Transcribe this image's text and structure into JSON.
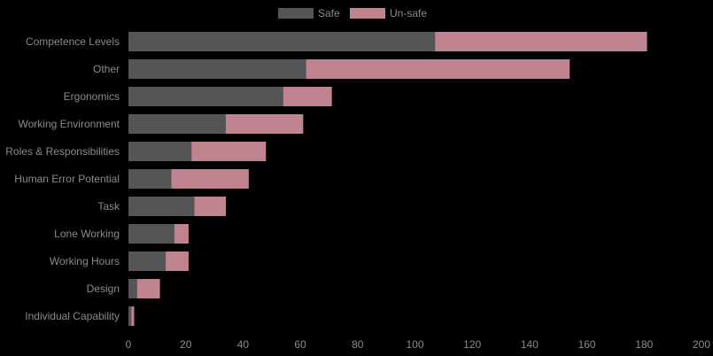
{
  "chart_data": {
    "type": "bar",
    "orientation": "horizontal",
    "stacked": true,
    "categories": [
      "Competence Levels",
      "Other",
      "Ergonomics",
      "Working Environment",
      "Roles & Responsibilities",
      "Human Error Potential",
      "Task",
      "Lone Working",
      "Working Hours",
      "Design",
      "Individual Capability"
    ],
    "series": [
      {
        "name": "Safe",
        "color": "#555555",
        "values": [
          107,
          62,
          54,
          34,
          22,
          15,
          23,
          16,
          13,
          3,
          1
        ]
      },
      {
        "name": "Un-safe",
        "color": "#c08390",
        "values": [
          74,
          92,
          17,
          27,
          26,
          27,
          11,
          5,
          8,
          8,
          1
        ]
      }
    ],
    "xlim": [
      0,
      200
    ],
    "xticks": [
      0,
      20,
      40,
      60,
      80,
      100,
      120,
      140,
      160,
      180,
      200
    ],
    "legend_position": "top-center",
    "grid": false
  }
}
